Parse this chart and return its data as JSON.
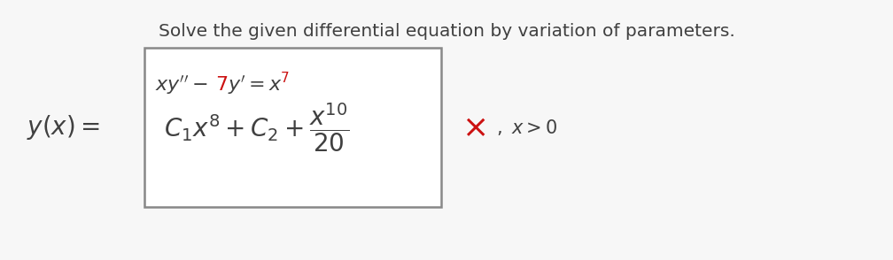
{
  "title": "Solve the given differential equation by variation of parameters.",
  "title_color": "#404040",
  "title_fontsize": 14.5,
  "eq_color": "#404040",
  "red_color": "#cc1111",
  "box_edge_color": "#888888",
  "background_color": "#f7f7f7",
  "white": "#ffffff",
  "text_color": "#404040"
}
